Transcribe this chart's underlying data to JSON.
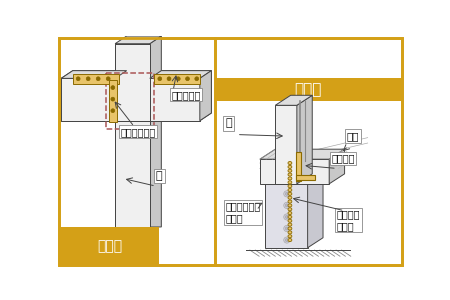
{
  "bg_color": "#ffffff",
  "border_color": "#D4A017",
  "border_width": 2.0,
  "label_left": "柱と梁",
  "label_right": "土　台",
  "label_bg": "#D4A017",
  "annotation_梁又はけた": "梁又はけた",
  "annotation_たんざく金物": "たんざく金物",
  "annotation_柱_left": "柱",
  "annotation_柱_right": "柱",
  "annotation_土台": "土台",
  "annotation_金物補強": "金物補強",
  "annotation_コンクリート布基礎": "コンクリート\n布基礎",
  "annotation_アンカーボルト": "アンカー\nボルト",
  "wood_light": "#E8C46A",
  "wood_tan": "#D4A017",
  "line_color": "#444444",
  "metal_gold": "#E8C46A",
  "metal_border": "#8B6A00",
  "gray_light": "#F0F0F0",
  "gray_mid": "#DEDEDE",
  "gray_dark": "#C8C8C8",
  "gray_darker": "#B8B8B8"
}
